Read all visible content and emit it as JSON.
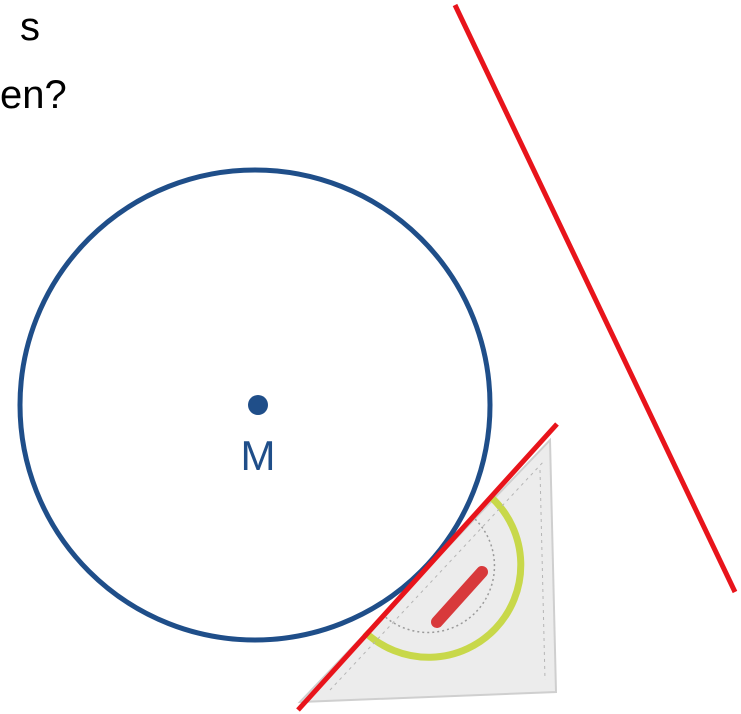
{
  "text_lines": [
    "s",
    "en?"
  ],
  "center_label": "M"
}
